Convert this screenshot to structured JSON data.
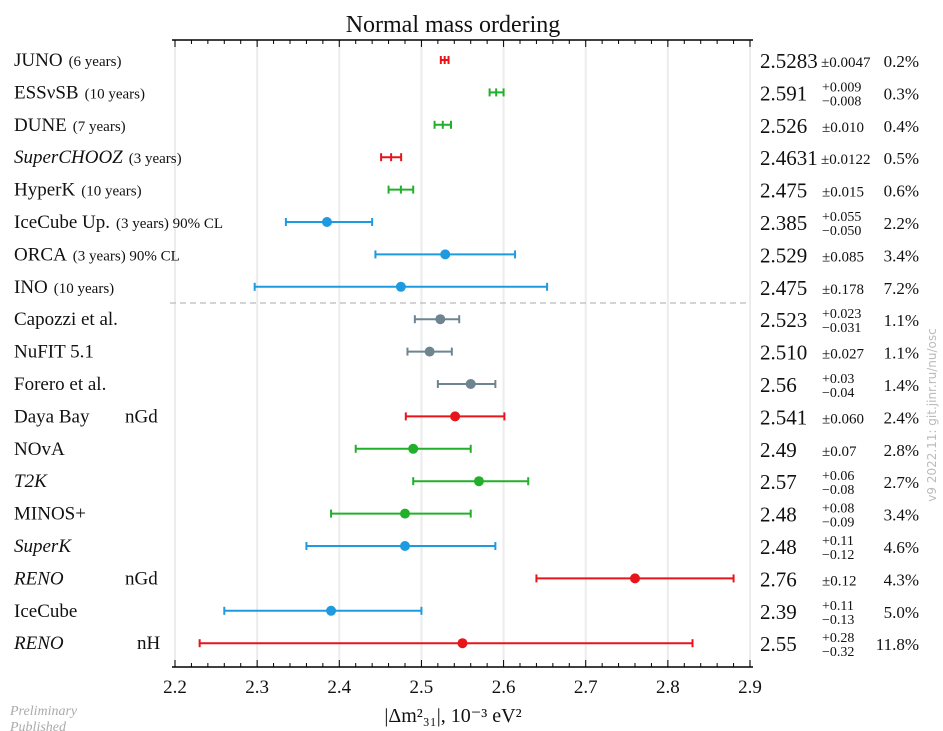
{
  "chart_data": {
    "type": "scatter",
    "title": "Normal mass ordering",
    "xlabel": "|Δm²₃₁|, 10⁻³ eV²",
    "xlim": [
      2.2,
      2.9
    ],
    "x_ticks": [
      "2.2",
      "2.3",
      "2.4",
      "2.5",
      "2.6",
      "2.7",
      "2.8",
      "2.9"
    ],
    "colors": {
      "red": "#e8141a",
      "green": "#22b02a",
      "blue": "#1e9be0",
      "gray": "#6e8591",
      "separator": "#bbbbbb"
    },
    "rows": [
      {
        "name": "JUNO",
        "name_italic": false,
        "detail": "(6 years)",
        "note": "",
        "value": 2.5283,
        "minus": 0.0047,
        "plus": 0.0047,
        "value_text": "2.5283",
        "err_text": "±0.0047",
        "err_plus": "",
        "err_minus": "",
        "pct": "0.2%",
        "color": "red",
        "marker": false
      },
      {
        "name": "ESSνSB",
        "name_italic": false,
        "detail": "(10 years)",
        "note": "",
        "value": 2.591,
        "minus": 0.008,
        "plus": 0.009,
        "value_text": "2.591",
        "err_text": "",
        "err_plus": "+0.009",
        "err_minus": "−0.008",
        "pct": "0.3%",
        "color": "green",
        "marker": false
      },
      {
        "name": "DUNE",
        "name_italic": false,
        "detail": "(7 years)",
        "note": "",
        "value": 2.526,
        "minus": 0.01,
        "plus": 0.01,
        "value_text": "2.526",
        "err_text": "±0.010",
        "err_plus": "",
        "err_minus": "",
        "pct": "0.4%",
        "color": "green",
        "marker": false
      },
      {
        "name": "SuperCHOOZ",
        "name_italic": true,
        "detail": "(3 years)",
        "note": "",
        "value": 2.4631,
        "minus": 0.0122,
        "plus": 0.0122,
        "value_text": "2.4631",
        "err_text": "±0.0122",
        "err_plus": "",
        "err_minus": "",
        "pct": "0.5%",
        "color": "red",
        "marker": false
      },
      {
        "name": "HyperK",
        "name_italic": false,
        "detail": "(10 years)",
        "note": "",
        "value": 2.475,
        "minus": 0.015,
        "plus": 0.015,
        "value_text": "2.475",
        "err_text": "±0.015",
        "err_plus": "",
        "err_minus": "",
        "pct": "0.6%",
        "color": "green",
        "marker": false
      },
      {
        "name": "IceCube Up.",
        "name_italic": false,
        "detail": "(3 years) 90% CL",
        "note": "",
        "value": 2.385,
        "minus": 0.05,
        "plus": 0.055,
        "value_text": "2.385",
        "err_text": "",
        "err_plus": "+0.055",
        "err_minus": "−0.050",
        "pct": "2.2%",
        "color": "blue",
        "marker": true
      },
      {
        "name": "ORCA",
        "name_italic": false,
        "detail": "(3 years) 90% CL",
        "note": "",
        "value": 2.529,
        "minus": 0.085,
        "plus": 0.085,
        "value_text": "2.529",
        "err_text": "±0.085",
        "err_plus": "",
        "err_minus": "",
        "pct": "3.4%",
        "color": "blue",
        "marker": true
      },
      {
        "name": "INO",
        "name_italic": false,
        "detail": "(10 years)",
        "note": "",
        "value": 2.475,
        "minus": 0.178,
        "plus": 0.178,
        "value_text": "2.475",
        "err_text": "±0.178",
        "err_plus": "",
        "err_minus": "",
        "pct": "7.2%",
        "color": "blue",
        "marker": true
      },
      {
        "name": "Capozzi et al.",
        "name_italic": false,
        "detail": "",
        "note": "",
        "value": 2.523,
        "minus": 0.031,
        "plus": 0.023,
        "value_text": "2.523",
        "err_text": "",
        "err_plus": "+0.023",
        "err_minus": "−0.031",
        "pct": "1.1%",
        "color": "gray",
        "marker": true
      },
      {
        "name": "NuFIT 5.1",
        "name_italic": false,
        "detail": "",
        "note": "",
        "value": 2.51,
        "minus": 0.027,
        "plus": 0.027,
        "value_text": "2.510",
        "err_text": "±0.027",
        "err_plus": "",
        "err_minus": "",
        "pct": "1.1%",
        "color": "gray",
        "marker": true
      },
      {
        "name": "Forero et al.",
        "name_italic": false,
        "detail": "",
        "note": "",
        "value": 2.56,
        "minus": 0.04,
        "plus": 0.03,
        "value_text": "2.56",
        "err_text": "",
        "err_plus": "+0.03",
        "err_minus": "−0.04",
        "pct": "1.4%",
        "color": "gray",
        "marker": true
      },
      {
        "name": "Daya Bay",
        "name_italic": false,
        "detail": "",
        "note": "nGd",
        "value": 2.541,
        "minus": 0.06,
        "plus": 0.06,
        "value_text": "2.541",
        "err_text": "±0.060",
        "err_plus": "",
        "err_minus": "",
        "pct": "2.4%",
        "color": "red",
        "marker": true
      },
      {
        "name": "NOvA",
        "name_italic": false,
        "detail": "",
        "note": "",
        "value": 2.49,
        "minus": 0.07,
        "plus": 0.07,
        "value_text": "2.49",
        "err_text": "±0.07",
        "err_plus": "",
        "err_minus": "",
        "pct": "2.8%",
        "color": "green",
        "marker": true
      },
      {
        "name": "T2K",
        "name_italic": true,
        "detail": "",
        "note": "",
        "value": 2.57,
        "minus": 0.08,
        "plus": 0.06,
        "value_text": "2.57",
        "err_text": "",
        "err_plus": "+0.06",
        "err_minus": "−0.08",
        "pct": "2.7%",
        "color": "green",
        "marker": true
      },
      {
        "name": "MINOS+",
        "name_italic": false,
        "detail": "",
        "note": "",
        "value": 2.48,
        "minus": 0.09,
        "plus": 0.08,
        "value_text": "2.48",
        "err_text": "",
        "err_plus": "+0.08",
        "err_minus": "−0.09",
        "pct": "3.4%",
        "color": "green",
        "marker": true
      },
      {
        "name": "SuperK",
        "name_italic": true,
        "detail": "",
        "note": "",
        "value": 2.48,
        "minus": 0.12,
        "plus": 0.11,
        "value_text": "2.48",
        "err_text": "",
        "err_plus": "+0.11",
        "err_minus": "−0.12",
        "pct": "4.6%",
        "color": "blue",
        "marker": true
      },
      {
        "name": "RENO",
        "name_italic": true,
        "detail": "",
        "note": "nGd",
        "value": 2.76,
        "minus": 0.12,
        "plus": 0.12,
        "value_text": "2.76",
        "err_text": "±0.12",
        "err_plus": "",
        "err_minus": "",
        "pct": "4.3%",
        "color": "red",
        "marker": true
      },
      {
        "name": "IceCube",
        "name_italic": false,
        "detail": "",
        "note": "",
        "value": 2.39,
        "minus": 0.13,
        "plus": 0.11,
        "value_text": "2.39",
        "err_text": "",
        "err_plus": "+0.11",
        "err_minus": "−0.13",
        "pct": "5.0%",
        "color": "blue",
        "marker": true
      },
      {
        "name": "RENO",
        "name_italic": true,
        "detail": "",
        "note": "nH",
        "value": 2.55,
        "minus": 0.32,
        "plus": 0.28,
        "value_text": "2.55",
        "err_text": "",
        "err_plus": "+0.28",
        "err_minus": "−0.32",
        "pct": "11.8%",
        "color": "red",
        "marker": true
      }
    ],
    "separator_after_row": 7,
    "grid": true,
    "legend": "none"
  },
  "side_note": "v9 2022.11: git.jinr.ru/nu/osc",
  "footer": {
    "line1": "Preliminary",
    "line2": "Published"
  }
}
